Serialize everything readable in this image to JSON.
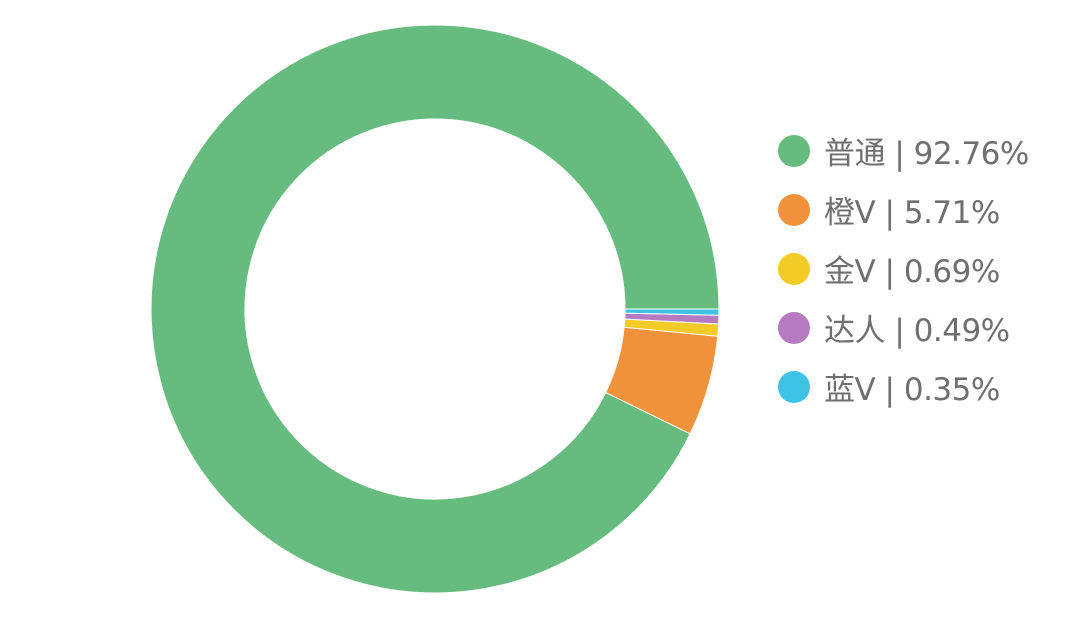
{
  "chart_data": {
    "type": "pie",
    "variant": "donut",
    "start": "right, going counter-clockwise",
    "legend_position": "right",
    "slices": [
      {
        "label": "普通",
        "value": 92.76,
        "display": "普通 | 92.76%",
        "color": "#66bb7e"
      },
      {
        "label": "橙V",
        "value": 5.71,
        "display": "橙V | 5.71%",
        "color": "#f0923b"
      },
      {
        "label": "金V",
        "value": 0.69,
        "display": "金V | 0.69%",
        "color": "#f2cb27"
      },
      {
        "label": "达人",
        "value": 0.49,
        "display": "达人 | 0.49%",
        "color": "#b57ac0"
      },
      {
        "label": "蓝V",
        "value": 0.35,
        "display": "蓝V | 0.35%",
        "color": "#3ec3e5"
      }
    ]
  }
}
